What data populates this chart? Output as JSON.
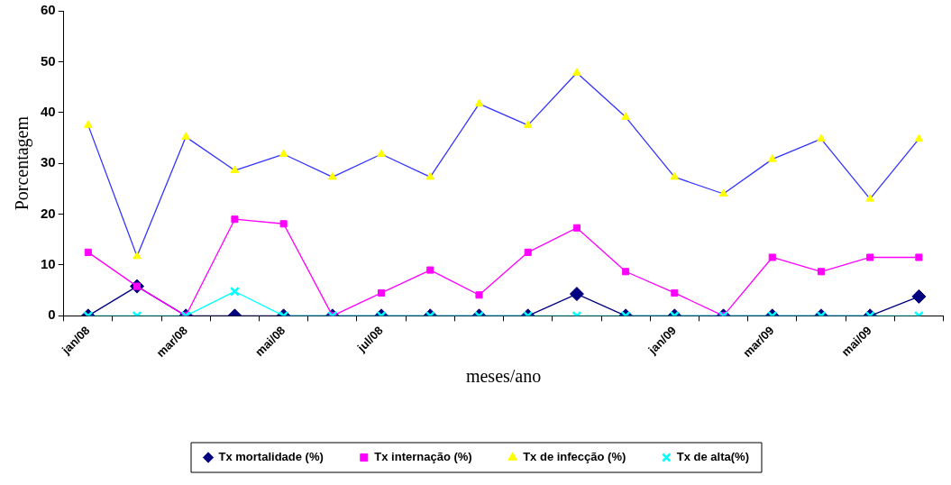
{
  "chart_data": {
    "type": "line",
    "xlabel": "meses/ano",
    "ylabel": "Porcentagem",
    "categories": [
      "jan/08",
      null,
      "mar/08",
      null,
      "mai/08",
      null,
      "jul/08",
      null,
      null,
      null,
      null,
      null,
      "jan/09",
      null,
      "mar/09",
      null,
      "mai/09",
      null
    ],
    "series": [
      {
        "name": "Tx mortalidade (%)",
        "color": "#000080",
        "marker": "diamond",
        "values": [
          0,
          5.8,
          0,
          0,
          0,
          0,
          0,
          0,
          0,
          0,
          4.3,
          0,
          0,
          0,
          0,
          0,
          0,
          3.8
        ]
      },
      {
        "name": "Tx internação (%)",
        "color": "#ff00ff",
        "marker": "square",
        "values": [
          12.5,
          5.8,
          0,
          19,
          18.1,
          0,
          4.5,
          9,
          4.1,
          12.5,
          17.3,
          8.7,
          4.5,
          0,
          11.5,
          8.7,
          11.5,
          11.5
        ]
      },
      {
        "name": "Tx de infecção (%)",
        "color": "#3333ff",
        "marker": "triangle",
        "colors": [
          "#ffff00",
          "#ffff00",
          "#ffff00",
          "#ffff00",
          "#ffff00",
          "#ffff00",
          "#ffff00",
          "#ffff00",
          "#ffff00",
          "#ffff00",
          "#ffff00",
          "#ffff00",
          "#ffff00",
          "#ffff00",
          "#ffff00",
          "#ffff00",
          "#ffff00",
          "#ffff00"
        ],
        "values": [
          37.5,
          11.7,
          35.2,
          28.6,
          31.8,
          27.3,
          31.8,
          27.3,
          41.7,
          37.5,
          47.8,
          39.1,
          27.3,
          24,
          30.8,
          34.8,
          23,
          34.8
        ]
      },
      {
        "name": "Tx de alta(%)",
        "color": "#00ffff",
        "marker": "cross",
        "values": [
          0,
          0,
          0,
          4.8,
          0,
          0,
          0,
          0,
          0,
          0,
          0,
          0,
          0,
          0,
          0,
          0,
          0,
          0
        ]
      }
    ],
    "ylim": [
      0,
      60
    ],
    "yticks": [
      0,
      10,
      20,
      30,
      40,
      50,
      60
    ],
    "grid": false,
    "legend": "bottom",
    "line_style": "solid"
  }
}
